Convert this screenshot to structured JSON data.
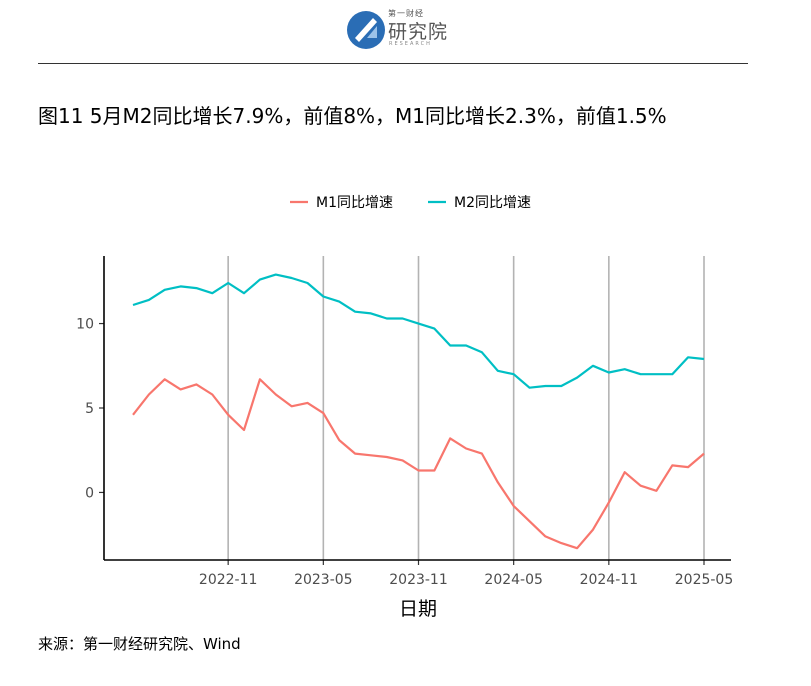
{
  "header": {
    "logo_small": "第一财经",
    "logo_big": "研究院",
    "logo_research": "RESEARCH"
  },
  "title": "图11 5月M2同比增长7.9%，前值8%，M1同比增长2.3%，前值1.5%",
  "source": "来源：第一财经研究院、Wind",
  "chart_data": {
    "type": "line",
    "xlabel": "日期",
    "ylabel": "",
    "x": [
      "2022-05",
      "2022-06",
      "2022-07",
      "2022-08",
      "2022-09",
      "2022-10",
      "2022-11",
      "2022-12",
      "2023-01",
      "2023-02",
      "2023-03",
      "2023-04",
      "2023-05",
      "2023-06",
      "2023-07",
      "2023-08",
      "2023-09",
      "2023-10",
      "2023-11",
      "2023-12",
      "2024-01",
      "2024-02",
      "2024-03",
      "2024-04",
      "2024-05",
      "2024-06",
      "2024-07",
      "2024-08",
      "2024-09",
      "2024-10",
      "2024-11",
      "2024-12",
      "2025-01",
      "2025-02",
      "2025-03",
      "2025-04",
      "2025-05"
    ],
    "series": [
      {
        "name": "M1同比增速",
        "color": "#F8766D",
        "values": [
          4.6,
          5.8,
          6.7,
          6.1,
          6.4,
          5.8,
          4.6,
          3.7,
          6.7,
          5.8,
          5.1,
          5.3,
          4.7,
          3.1,
          2.3,
          2.2,
          2.1,
          1.9,
          1.3,
          1.3,
          3.2,
          2.6,
          2.3,
          0.6,
          -0.8,
          -1.7,
          -2.6,
          -3.0,
          -3.3,
          -2.2,
          -0.6,
          1.2,
          0.4,
          0.1,
          1.6,
          1.5,
          2.3
        ]
      },
      {
        "name": "M2同比增速",
        "color": "#00BFC4",
        "values": [
          11.1,
          11.4,
          12.0,
          12.2,
          12.1,
          11.8,
          12.4,
          11.8,
          12.6,
          12.9,
          12.7,
          12.4,
          11.6,
          11.3,
          10.7,
          10.6,
          10.3,
          10.3,
          10.0,
          9.7,
          8.7,
          8.7,
          8.3,
          7.2,
          7.0,
          6.2,
          6.3,
          6.3,
          6.8,
          7.5,
          7.1,
          7.3,
          7.0,
          7.0,
          7.0,
          8.0,
          7.9
        ]
      }
    ],
    "x_ticks": [
      "2022-11",
      "2023-05",
      "2023-11",
      "2024-05",
      "2024-11",
      "2025-05"
    ],
    "y_ticks": [
      0,
      5,
      10
    ],
    "xlim": [
      "2022-05",
      "2025-05"
    ],
    "ylim": [
      -4,
      14
    ],
    "grid": "vertical lines at x ticks",
    "legend_position": "top"
  }
}
